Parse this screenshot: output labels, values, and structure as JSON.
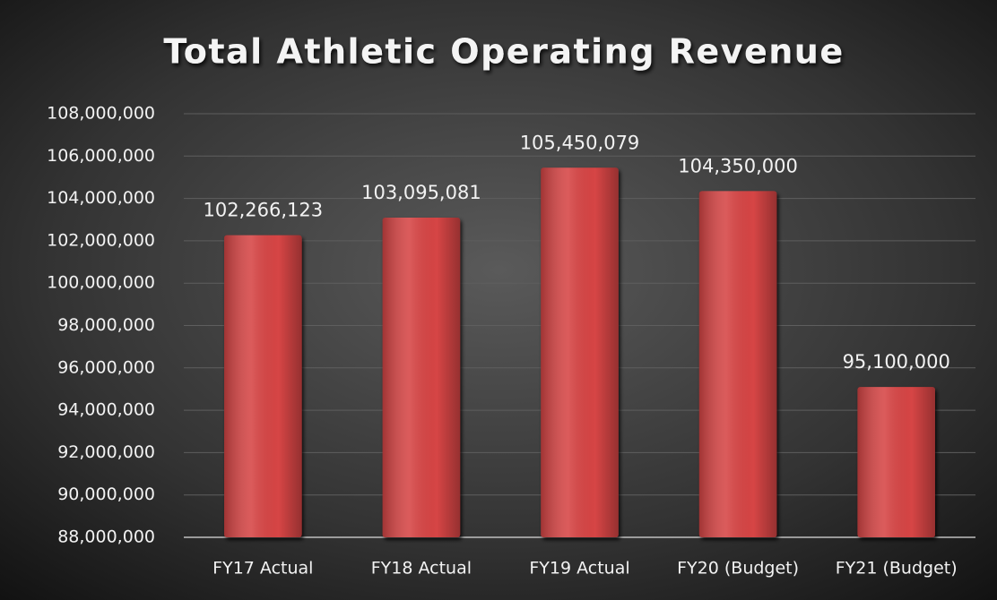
{
  "chart_data": {
    "type": "bar",
    "title": "Total Athletic Operating Revenue",
    "categories": [
      "FY17 Actual",
      "FY18 Actual",
      "FY19 Actual",
      "FY20 (Budget)",
      "FY21 (Budget)"
    ],
    "values": [
      102266123,
      103095081,
      105450079,
      104350000,
      95100000
    ],
    "value_labels": [
      "102,266,123",
      "103,095,081",
      "105,450,079",
      "104,350,000",
      "95,100,000"
    ],
    "color": "#d64545",
    "ylim": [
      88000000,
      108000000
    ],
    "yticks": [
      {
        "value": 88000000,
        "label": "88,000,000"
      },
      {
        "value": 90000000,
        "label": "90,000,000"
      },
      {
        "value": 92000000,
        "label": "92,000,000"
      },
      {
        "value": 94000000,
        "label": "94,000,000"
      },
      {
        "value": 96000000,
        "label": "96,000,000"
      },
      {
        "value": 98000000,
        "label": "98,000,000"
      },
      {
        "value": 100000000,
        "label": "100,000,000"
      },
      {
        "value": 102000000,
        "label": "102,000,000"
      },
      {
        "value": 104000000,
        "label": "104,000,000"
      },
      {
        "value": 106000000,
        "label": "106,000,000"
      },
      {
        "value": 108000000,
        "label": "108,000,000"
      }
    ],
    "grid": true
  }
}
